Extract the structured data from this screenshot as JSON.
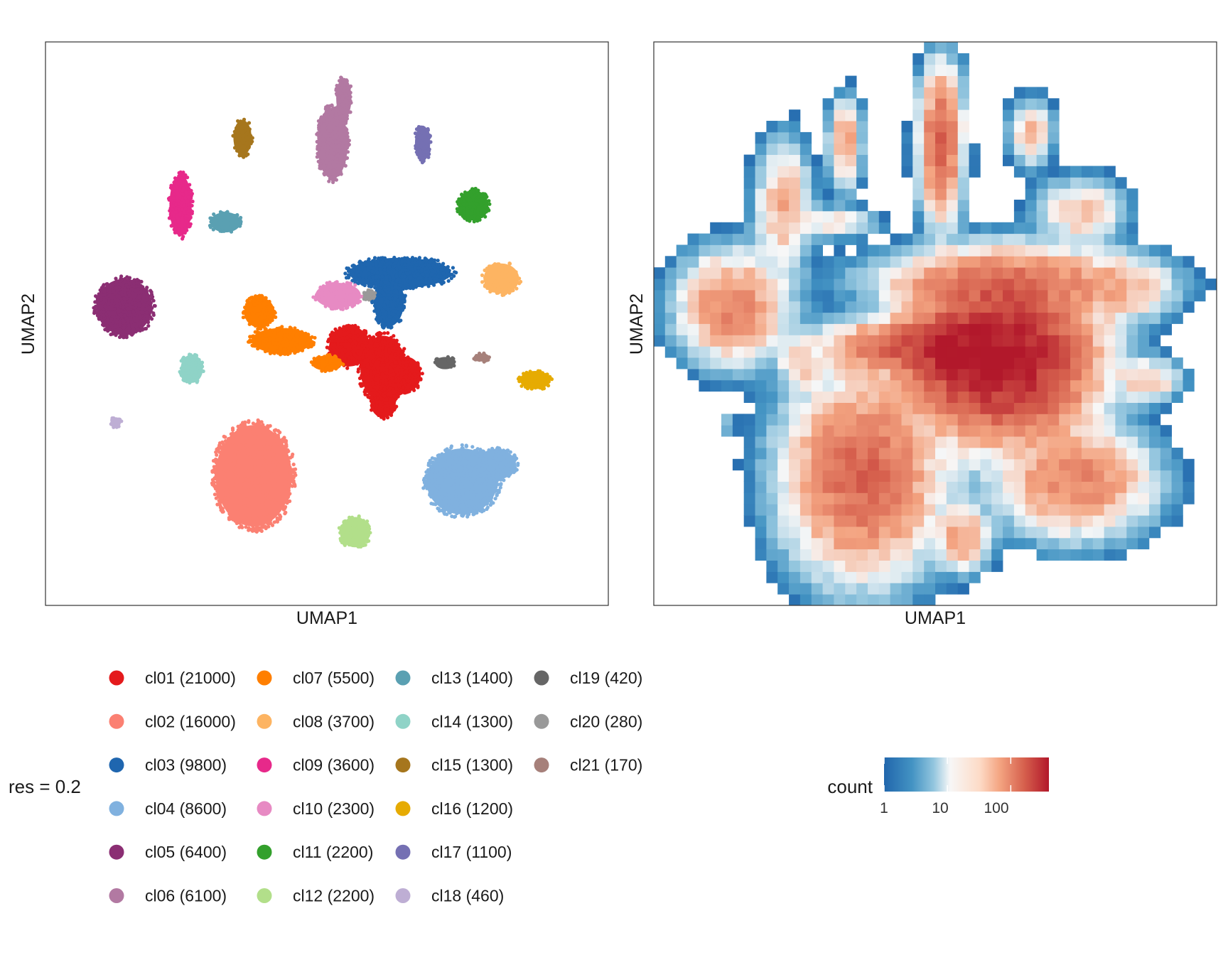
{
  "chart_data": [
    {
      "type": "scatter",
      "title": "",
      "xlabel": "UMAP1",
      "ylabel": "UMAP2",
      "xlim": [
        0,
        100
      ],
      "ylim": [
        0,
        100
      ],
      "grid": false,
      "legend_title": "res = 0.2",
      "legend_position": "bottom",
      "series": [
        {
          "name": "cl01 (21000)",
          "color": "#E41A1C",
          "blobs": [
            [
              60,
              42,
              4.5,
              6.5
            ],
            [
              54,
              46,
              4,
              4
            ],
            [
              64,
              41,
              3,
              3.5
            ],
            [
              60,
              36,
              2.5,
              3
            ]
          ]
        },
        {
          "name": "cl02 (16000)",
          "color": "#FB8072",
          "blobs": [
            [
              37,
              23,
              7.5,
              10
            ]
          ]
        },
        {
          "name": "cl03 (9800)",
          "color": "#1F66AF",
          "blobs": [
            [
              63,
              59,
              10,
              3
            ],
            [
              61,
              54,
              3,
              5
            ]
          ]
        },
        {
          "name": "cl04 (8600)",
          "color": "#80B1DF",
          "blobs": [
            [
              74,
              22,
              7,
              6.5
            ],
            [
              80,
              25,
              4,
              3
            ]
          ]
        },
        {
          "name": "cl05 (6400)",
          "color": "#8B2E73",
          "blobs": [
            [
              14,
              53,
              5.5,
              5.5
            ]
          ]
        },
        {
          "name": "cl06 (6100)",
          "color": "#B279A2",
          "blobs": [
            [
              51,
              82,
              3,
              7
            ],
            [
              53,
              90,
              1.5,
              4
            ]
          ]
        },
        {
          "name": "cl07 (5500)",
          "color": "#FF7F00",
          "blobs": [
            [
              42,
              47,
              6,
              2.5
            ],
            [
              38,
              52,
              3,
              3
            ],
            [
              50,
              43,
              3,
              1.5
            ]
          ]
        },
        {
          "name": "cl08 (3700)",
          "color": "#FDB462",
          "blobs": [
            [
              81,
              58,
              3.5,
              3
            ]
          ]
        },
        {
          "name": "cl09 (3600)",
          "color": "#E7298A",
          "blobs": [
            [
              24,
              71,
              2.2,
              6
            ]
          ]
        },
        {
          "name": "cl10 (2300)",
          "color": "#E78AC3",
          "blobs": [
            [
              52,
              55,
              4.5,
              2.5
            ]
          ]
        },
        {
          "name": "cl11 (2200)",
          "color": "#33A02C",
          "blobs": [
            [
              76,
              71,
              3,
              3
            ]
          ]
        },
        {
          "name": "cl12 (2200)",
          "color": "#B2DF8A",
          "blobs": [
            [
              55,
              13,
              3,
              3
            ]
          ]
        },
        {
          "name": "cl13 (1400)",
          "color": "#5AA0B2",
          "blobs": [
            [
              32,
              68,
              3,
              2
            ]
          ]
        },
        {
          "name": "cl14 (1300)",
          "color": "#8FD3C7",
          "blobs": [
            [
              26,
              42,
              2.2,
              2.8
            ]
          ]
        },
        {
          "name": "cl15 (1300)",
          "color": "#A6761D",
          "blobs": [
            [
              35,
              83,
              1.8,
              3.5
            ]
          ]
        },
        {
          "name": "cl16 (1200)",
          "color": "#E6AB02",
          "blobs": [
            [
              87,
              40,
              3,
              1.8
            ]
          ]
        },
        {
          "name": "cl17 (1100)",
          "color": "#7570B3",
          "blobs": [
            [
              67,
              82,
              1.5,
              3.5
            ]
          ]
        },
        {
          "name": "cl18 (460)",
          "color": "#BEAED4",
          "blobs": [
            [
              12.5,
              32.5,
              1,
              1
            ]
          ]
        },
        {
          "name": "cl19 (420)",
          "color": "#666666",
          "blobs": [
            [
              71,
              43,
              2,
              1.2
            ]
          ]
        },
        {
          "name": "cl20 (280)",
          "color": "#999999",
          "blobs": [
            [
              57.5,
              55,
              1.2,
              1
            ]
          ]
        },
        {
          "name": "cl21 (170)",
          "color": "#A6807A",
          "blobs": [
            [
              77.5,
              44,
              1.6,
              0.8
            ]
          ]
        }
      ]
    },
    {
      "type": "heatmap",
      "title": "",
      "xlabel": "UMAP1",
      "ylabel": "UMAP2",
      "xlim": [
        0,
        100
      ],
      "ylim": [
        0,
        100
      ],
      "grid": false,
      "legend_title": "count",
      "legend_scale": "log10",
      "legend_ticks": [
        "1",
        "10",
        "100"
      ],
      "legend_tick_values": [
        1,
        10,
        100
      ],
      "color_range": [
        1,
        400
      ],
      "colors": [
        "#2166AC",
        "#4393C3",
        "#92C5DE",
        "#F7F7F7",
        "#F4A582",
        "#D6604D",
        "#B2182B"
      ],
      "bins": 50,
      "clusters": [
        [
          62,
          44,
          8,
          7,
          420
        ],
        [
          54,
          45,
          5,
          4,
          180
        ],
        [
          63,
          58,
          12,
          3,
          80
        ],
        [
          83,
          56,
          5,
          3,
          40
        ],
        [
          14,
          53,
          5,
          5,
          90
        ],
        [
          37,
          23,
          7,
          9,
          140
        ],
        [
          75,
          22,
          7,
          5,
          90
        ],
        [
          51,
          82,
          2,
          7,
          140
        ],
        [
          34,
          82,
          1.5,
          4,
          60
        ],
        [
          67,
          84,
          2,
          3,
          40
        ],
        [
          76,
          70,
          4,
          3,
          40
        ],
        [
          23,
          71,
          2.5,
          6,
          50
        ],
        [
          32,
          68,
          4,
          1.5,
          25
        ],
        [
          26,
          43,
          2,
          2.5,
          35
        ],
        [
          55,
          12,
          2.5,
          3,
          60
        ],
        [
          88,
          40,
          3,
          2,
          40
        ],
        [
          13,
          32,
          1,
          1,
          8
        ],
        [
          43,
          46,
          7,
          2.5,
          120
        ],
        [
          50,
          56,
          4,
          2,
          30
        ]
      ]
    }
  ]
}
